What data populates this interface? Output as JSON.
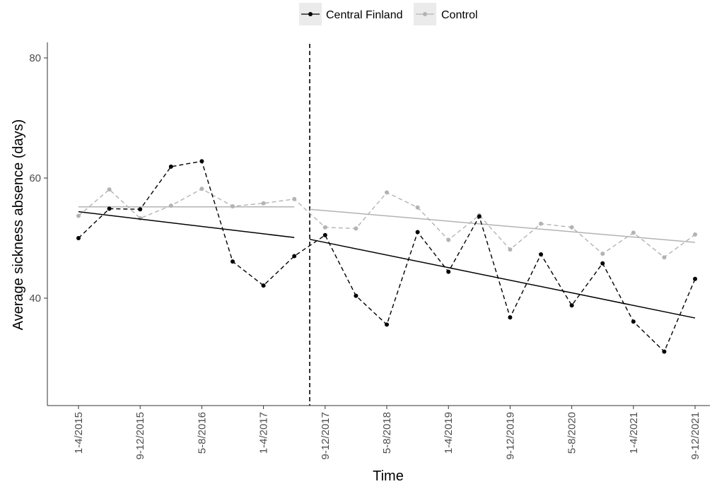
{
  "chart_data": {
    "type": "line",
    "title": "",
    "xlabel": "Time",
    "ylabel": "Average sickness absence (days)",
    "ylim": [
      22,
      82
    ],
    "y_ticks": [
      40,
      60,
      80
    ],
    "grid": false,
    "legend_placement": "top",
    "intervention_index": 7.5,
    "x_tick_labels": [
      "1-4/2015",
      "9-12/2015",
      "5-8/2016",
      "1-4/2017",
      "9-12/2017",
      "5-8/2018",
      "1-4/2019",
      "9-12/2019",
      "5-8/2020",
      "1-4/2021",
      "9-12/2021"
    ],
    "x_tick_indices": [
      0,
      2,
      4,
      6,
      8,
      10,
      12,
      14,
      16,
      18,
      20
    ],
    "series": [
      {
        "name": "Central Finland",
        "color": "#000000",
        "values": [
          50.0,
          54.9,
          54.8,
          61.9,
          62.8,
          46.1,
          42.1,
          47.0,
          50.5,
          40.4,
          35.6,
          51.0,
          44.4,
          53.6,
          36.8,
          47.3,
          38.8,
          45.8,
          36.1,
          31.1,
          43.2
        ],
        "trend_pre": [
          54.4,
          50.1
        ],
        "trend_post": [
          49.8,
          36.7
        ]
      },
      {
        "name": "Control",
        "color": "#b3b3b3",
        "values": [
          53.7,
          58.1,
          53.3,
          55.4,
          58.2,
          55.3,
          55.8,
          56.5,
          51.8,
          51.6,
          57.6,
          55.1,
          49.7,
          53.8,
          48.1,
          52.4,
          51.8,
          47.4,
          50.9,
          46.8,
          50.6
        ],
        "trend_pre": [
          55.2,
          55.2
        ],
        "trend_post": [
          54.8,
          49.3
        ]
      }
    ]
  }
}
